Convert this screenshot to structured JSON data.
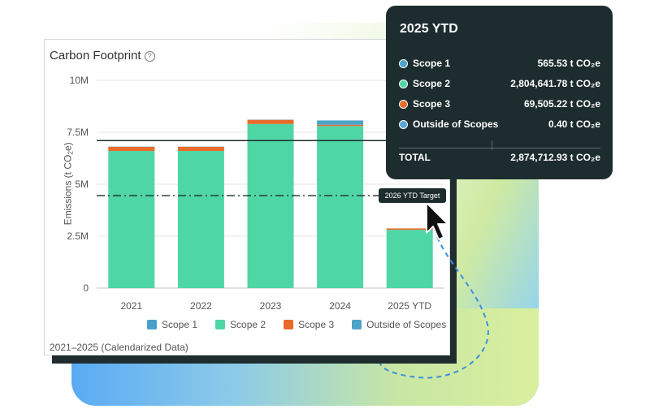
{
  "card": {
    "title": "Carbon Footprint",
    "help_icon": "help-circle-icon",
    "footer_note": "2021–2025 (Calendarized Data)"
  },
  "target_label": "2026 YTD Target",
  "tooltip": {
    "title": "2025 YTD",
    "rows": [
      {
        "name": "Scope 1",
        "value": "565.53 t CO₂e",
        "color": "#4aa3cc"
      },
      {
        "name": "Scope 2",
        "value": "2,804,641.78 t CO₂e",
        "color": "#4fd6a5"
      },
      {
        "name": "Scope 3",
        "value": "69,505.22 t CO₂e",
        "color": "#e86b2a"
      },
      {
        "name": "Outside of Scopes",
        "value": "0.40 t CO₂e",
        "color": "#5aa7d6"
      }
    ],
    "total_label": "TOTAL",
    "total_value": "2,874,712.93 t CO₂e"
  },
  "chart_data": {
    "type": "bar",
    "stacked": true,
    "categories": [
      "2021",
      "2022",
      "2023",
      "2024",
      "2025 YTD"
    ],
    "series": [
      {
        "name": "Scope 1",
        "color": "#4a9fc9",
        "values": [
          10000,
          10000,
          10000,
          10000,
          565.53
        ]
      },
      {
        "name": "Scope 2",
        "color": "#4fd6a5",
        "values": [
          6600000,
          6600000,
          7900000,
          7800000,
          2804641.78
        ]
      },
      {
        "name": "Scope 3",
        "color": "#e86b2a",
        "values": [
          200000,
          200000,
          200000,
          60000,
          69505.22
        ]
      },
      {
        "name": "Outside of Scopes",
        "color": "#4ea3c7",
        "values": [
          0,
          0,
          0,
          200000,
          0.4
        ]
      }
    ],
    "ylabel": "Emissions (t CO₂e)",
    "ytick_labels": [
      "0",
      "2.5M",
      "5M",
      "7.5M",
      "10M"
    ],
    "yticks": [
      0,
      2500000,
      5000000,
      7500000,
      10000000
    ],
    "ylim": [
      0,
      10000000
    ],
    "reference_lines": [
      {
        "value": 7100000,
        "style": "solid"
      },
      {
        "value": 4450000,
        "style": "dash-dot"
      }
    ],
    "grid": true,
    "legend": "bottom"
  }
}
